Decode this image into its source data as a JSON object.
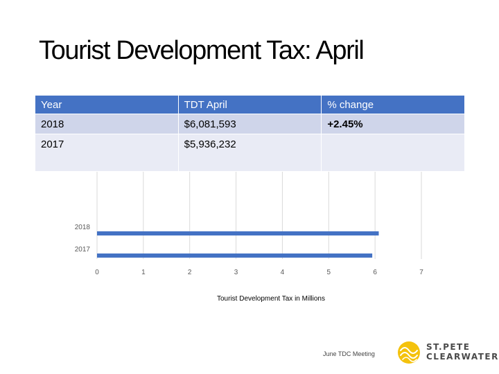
{
  "slide": {
    "title": "Tourist Development Tax: April",
    "footer": "June TDC Meeting"
  },
  "table": {
    "headers": [
      "Year",
      "TDT April",
      "% change"
    ],
    "rows": [
      [
        "2018",
        "$6,081,593",
        "+2.45%"
      ],
      [
        "2017",
        "$5,936,232",
        ""
      ]
    ]
  },
  "chart_data": {
    "type": "bar",
    "orientation": "horizontal",
    "categories": [
      "2018",
      "2017"
    ],
    "values": [
      6.08,
      5.94
    ],
    "xlabel": "Tourist Development Tax in Millions",
    "xlim": [
      0,
      7
    ],
    "xticks": [
      "0",
      "1",
      "2",
      "3",
      "4",
      "5",
      "6",
      "7"
    ],
    "grid": true,
    "bar_color": "#4472c4"
  },
  "logo": {
    "line1": "ST.PETE",
    "line2": "CLEARWATER",
    "mark_color": "#f4c20d"
  }
}
